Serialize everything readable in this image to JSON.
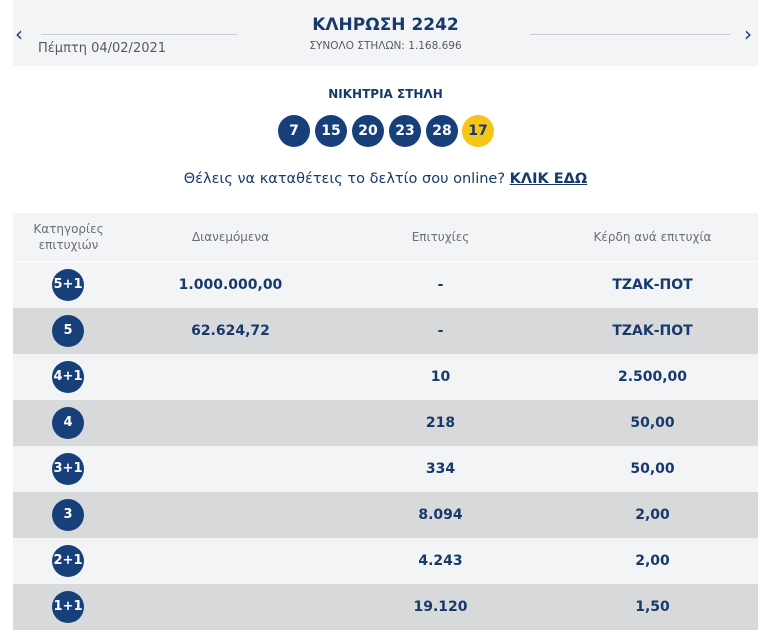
{
  "header": {
    "date": "Πέμπτη 04/02/2021",
    "draw_title": "ΚΛΗΡΩΣΗ 2242",
    "draw_total": "ΣΥΝΟΛΟ ΣΤΗΛΩΝ: 1.168.696",
    "prev_icon": "chevron-left-icon",
    "next_icon": "chevron-right-icon"
  },
  "winning": {
    "label": "ΝΙΚΗΤΡΙΑ ΣΤΗΛΗ",
    "numbers": [
      "7",
      "15",
      "20",
      "23",
      "28"
    ],
    "bonus": "17"
  },
  "cta": {
    "text": "Θέλεις να καταθέτεις το δελτίο σου online?",
    "link": "ΚΛΙΚ ΕΔΩ"
  },
  "table": {
    "headers": {
      "categories": "Κατηγορίες επιτυχιών",
      "distributed": "Διανεμόμενα",
      "successes": "Επιτυχίες",
      "prize": "Κέρδη ανά επιτυχία"
    },
    "rows": [
      {
        "category": "5+1",
        "distributed": "1.000.000,00",
        "successes": "-",
        "prize": "ΤΖΑΚ-ΠΟΤ"
      },
      {
        "category": "5",
        "distributed": "62.624,72",
        "successes": "-",
        "prize": "ΤΖΑΚ-ΠΟΤ"
      },
      {
        "category": "4+1",
        "distributed": "",
        "successes": "10",
        "prize": "2.500,00"
      },
      {
        "category": "4",
        "distributed": "",
        "successes": "218",
        "prize": "50,00"
      },
      {
        "category": "3+1",
        "distributed": "",
        "successes": "334",
        "prize": "50,00"
      },
      {
        "category": "3",
        "distributed": "",
        "successes": "8.094",
        "prize": "2,00"
      },
      {
        "category": "2+1",
        "distributed": "",
        "successes": "4.243",
        "prize": "2,00"
      },
      {
        "category": "1+1",
        "distributed": "",
        "successes": "19.120",
        "prize": "1,50"
      }
    ]
  },
  "colors": {
    "primary_navy": "#173a6b",
    "ball_navy": "#173f7a",
    "bonus_yellow": "#f5c518",
    "row_light": "#f3f4f6",
    "row_dark": "#d8d9db"
  }
}
